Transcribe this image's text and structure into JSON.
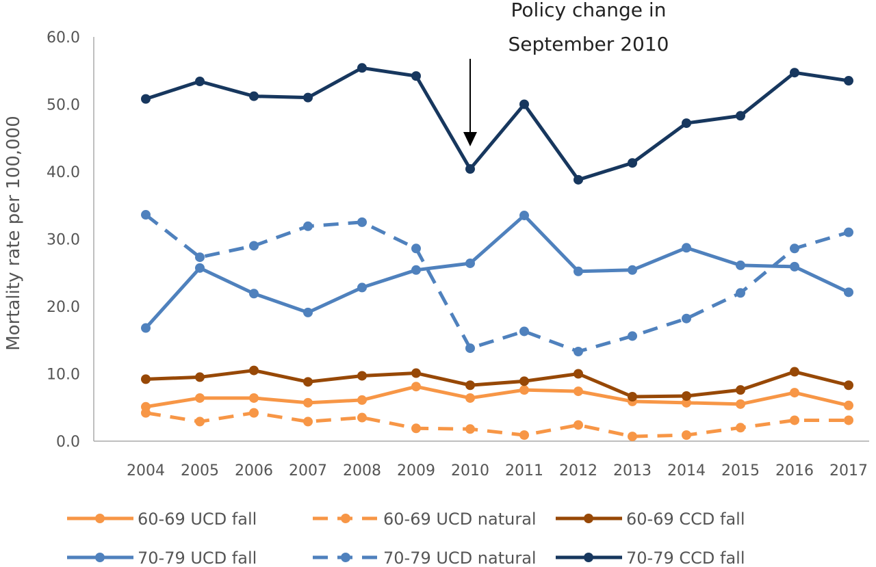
{
  "chart_data": {
    "type": "line",
    "title": "",
    "xlabel": "",
    "ylabel": "Mortality rate per 100,000",
    "ylim": [
      0,
      60
    ],
    "y_ticks": [
      "0.0",
      "10.0",
      "20.0",
      "30.0",
      "40.0",
      "50.0",
      "60.0"
    ],
    "x": [
      "2004",
      "2005",
      "2006",
      "2007",
      "2008",
      "2009",
      "2010",
      "2011",
      "2012",
      "2013",
      "2014",
      "2015",
      "2016",
      "2017"
    ],
    "grid": false,
    "legend_placement": "bottom",
    "annotation": {
      "lines": [
        "Policy change in",
        "September 2010"
      ],
      "x": "2010"
    },
    "series": [
      {
        "name": "60-69 UCD fall",
        "color": "#F79646",
        "dash": false,
        "values": [
          5.1,
          6.4,
          6.4,
          5.7,
          6.1,
          8.1,
          6.4,
          7.6,
          7.4,
          5.9,
          5.7,
          5.5,
          7.2,
          5.3
        ]
      },
      {
        "name": "60-69 UCD natural",
        "color": "#F79646",
        "dash": true,
        "values": [
          4.2,
          2.9,
          4.2,
          2.9,
          3.5,
          1.9,
          1.8,
          0.9,
          2.4,
          0.7,
          0.9,
          2.0,
          3.1,
          3.1
        ]
      },
      {
        "name": "60-69 CCD fall",
        "color": "#974806",
        "dash": false,
        "values": [
          9.2,
          9.5,
          10.5,
          8.8,
          9.7,
          10.1,
          8.3,
          8.9,
          10.0,
          6.6,
          6.7,
          7.6,
          10.3,
          8.3
        ]
      },
      {
        "name": "70-79 UCD fall",
        "color": "#4F81BD",
        "dash": false,
        "values": [
          16.8,
          25.7,
          21.9,
          19.1,
          22.8,
          25.4,
          26.4,
          33.5,
          25.2,
          25.4,
          28.7,
          26.1,
          25.9,
          22.1
        ]
      },
      {
        "name": "70-79 UCD natural",
        "color": "#4F81BD",
        "dash": true,
        "values": [
          33.6,
          27.3,
          29.0,
          31.9,
          32.5,
          28.6,
          13.8,
          16.3,
          13.3,
          15.6,
          18.2,
          22.0,
          28.6,
          31.0
        ]
      },
      {
        "name": "70-79 CCD fall",
        "color": "#17375E",
        "dash": false,
        "values": [
          50.8,
          53.4,
          51.2,
          51.0,
          55.4,
          54.2,
          40.4,
          50.0,
          38.8,
          41.3,
          47.2,
          48.3,
          54.7,
          53.5
        ]
      }
    ]
  }
}
